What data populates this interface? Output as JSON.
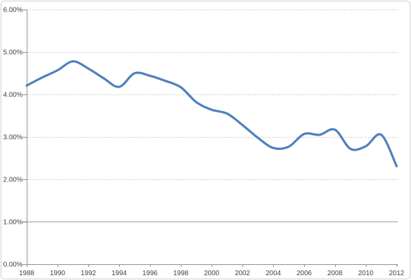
{
  "chart_data": {
    "type": "line",
    "title": "",
    "xlabel": "",
    "ylabel": "",
    "legend": "none",
    "grid": "horizontal-dotted",
    "x": [
      1988,
      1989,
      1990,
      1991,
      1992,
      1993,
      1994,
      1995,
      1996,
      1997,
      1998,
      1999,
      2000,
      2001,
      2002,
      2003,
      2004,
      2005,
      2006,
      2007,
      2008,
      2009,
      2010,
      2011,
      2012
    ],
    "values": [
      4.21,
      4.4,
      4.57,
      4.78,
      4.61,
      4.38,
      4.18,
      4.5,
      4.44,
      4.32,
      4.17,
      3.82,
      3.64,
      3.55,
      3.28,
      2.98,
      2.74,
      2.77,
      3.07,
      3.05,
      3.17,
      2.72,
      2.78,
      3.05,
      2.31
    ],
    "xlim": [
      1988,
      2012
    ],
    "ylim": [
      0,
      6
    ],
    "y_ticks": [
      {
        "label": "0.00%",
        "value": 0
      },
      {
        "label": "1.00%",
        "value": 1
      },
      {
        "label": "2.00%",
        "value": 2
      },
      {
        "label": "3.00%",
        "value": 3
      },
      {
        "label": "4.00%",
        "value": 4
      },
      {
        "label": "5.00%",
        "value": 5
      },
      {
        "label": "6.00%",
        "value": 6
      }
    ],
    "x_ticks": [
      {
        "label": "1988",
        "value": 1988
      },
      {
        "label": "1990",
        "value": 1990
      },
      {
        "label": "1992",
        "value": 1992
      },
      {
        "label": "1994",
        "value": 1994
      },
      {
        "label": "1996",
        "value": 1996
      },
      {
        "label": "1998",
        "value": 1998
      },
      {
        "label": "2000",
        "value": 2000
      },
      {
        "label": "2002",
        "value": 2002
      },
      {
        "label": "2004",
        "value": 2004
      },
      {
        "label": "2006",
        "value": 2006
      },
      {
        "label": "2008",
        "value": 2008
      },
      {
        "label": "2010",
        "value": 2010
      },
      {
        "label": "2012",
        "value": 2012
      }
    ],
    "solid_gridline_value": 1,
    "line_color": "#4F81BD",
    "axis_color": "#8E8E8E",
    "gridline_color": "#BFBFBF",
    "solid_gridline_color": "#C9C9C9",
    "label_color": "#3F3F3F",
    "frame_border_color": "#D0CECE",
    "background_color": "#FFFFFF",
    "line_smoothing": "smoothed"
  }
}
